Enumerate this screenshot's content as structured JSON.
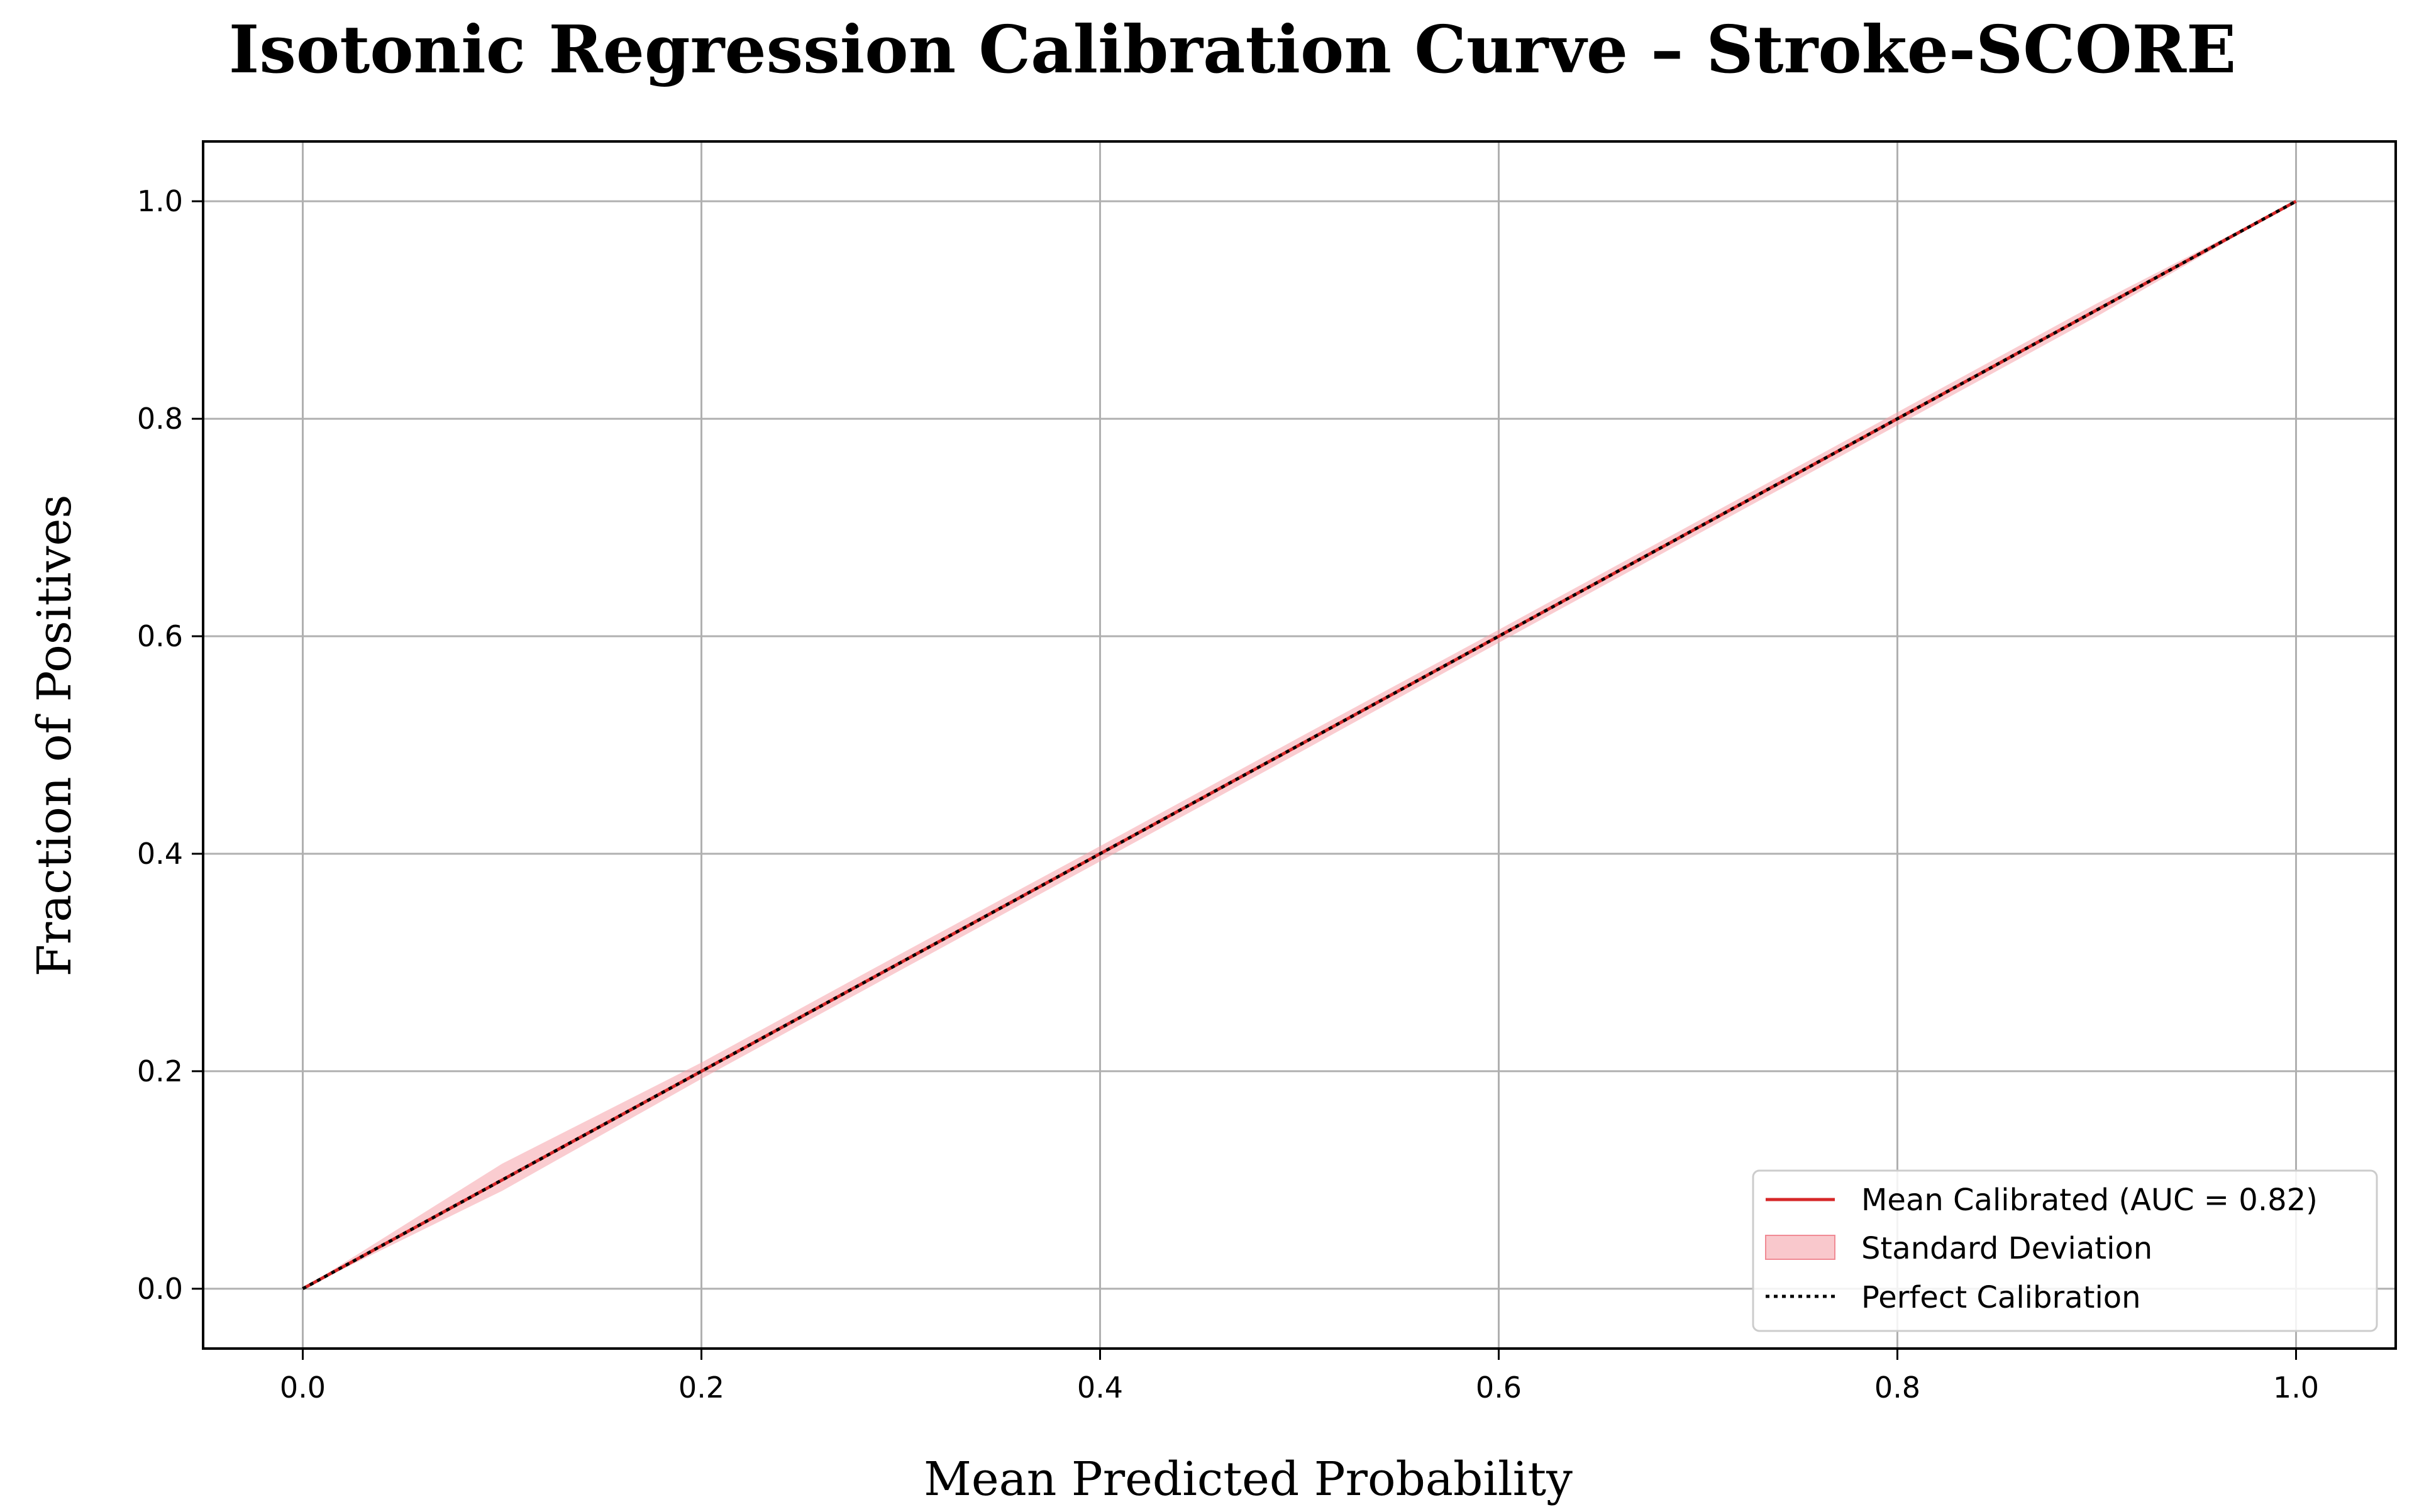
{
  "chart_data": {
    "type": "line",
    "title": "Isotonic Regression Calibration Curve – Stroke-SCORE",
    "xlabel": "Mean Predicted Probability",
    "ylabel": "Fraction of Positives",
    "xlim": [
      -0.05,
      1.05
    ],
    "ylim": [
      -0.055,
      1.055
    ],
    "grid": true,
    "x_ticks": [
      0.0,
      0.2,
      0.4,
      0.6,
      0.8,
      1.0
    ],
    "y_ticks": [
      0.0,
      0.2,
      0.4,
      0.6,
      0.8,
      1.0
    ],
    "x_tick_labels": [
      "0.0",
      "0.2",
      "0.4",
      "0.6",
      "0.8",
      "1.0"
    ],
    "y_tick_labels": [
      "0.0",
      "0.2",
      "0.4",
      "0.6",
      "0.8",
      "1.0"
    ],
    "legend_position": "bottom-right",
    "series": [
      {
        "name": "Mean Calibrated (AUC = 0.82)",
        "kind": "line",
        "color": "#d62728",
        "x": [
          0.0,
          0.1,
          0.2,
          0.3,
          0.4,
          0.5,
          0.6,
          0.7,
          0.8,
          0.9,
          1.0
        ],
        "y": [
          0.0,
          0.1,
          0.2,
          0.3,
          0.4,
          0.5,
          0.6,
          0.7,
          0.8,
          0.9,
          1.0
        ]
      },
      {
        "name": "Standard Deviation",
        "kind": "band",
        "color": "#f5a3aa",
        "x": [
          0.0,
          0.1,
          0.2,
          0.3,
          0.4,
          0.5,
          0.6,
          0.7,
          0.8,
          0.9,
          1.0
        ],
        "lower": [
          0.0,
          0.09,
          0.193,
          0.293,
          0.393,
          0.493,
          0.594,
          0.694,
          0.794,
          0.894,
          1.0
        ],
        "upper": [
          0.0,
          0.115,
          0.208,
          0.308,
          0.407,
          0.507,
          0.606,
          0.706,
          0.806,
          0.906,
          1.0
        ]
      },
      {
        "name": "Perfect Calibration",
        "kind": "dotted",
        "color": "#000000",
        "x": [
          0.0,
          1.0
        ],
        "y": [
          0.0,
          1.0
        ]
      }
    ]
  }
}
